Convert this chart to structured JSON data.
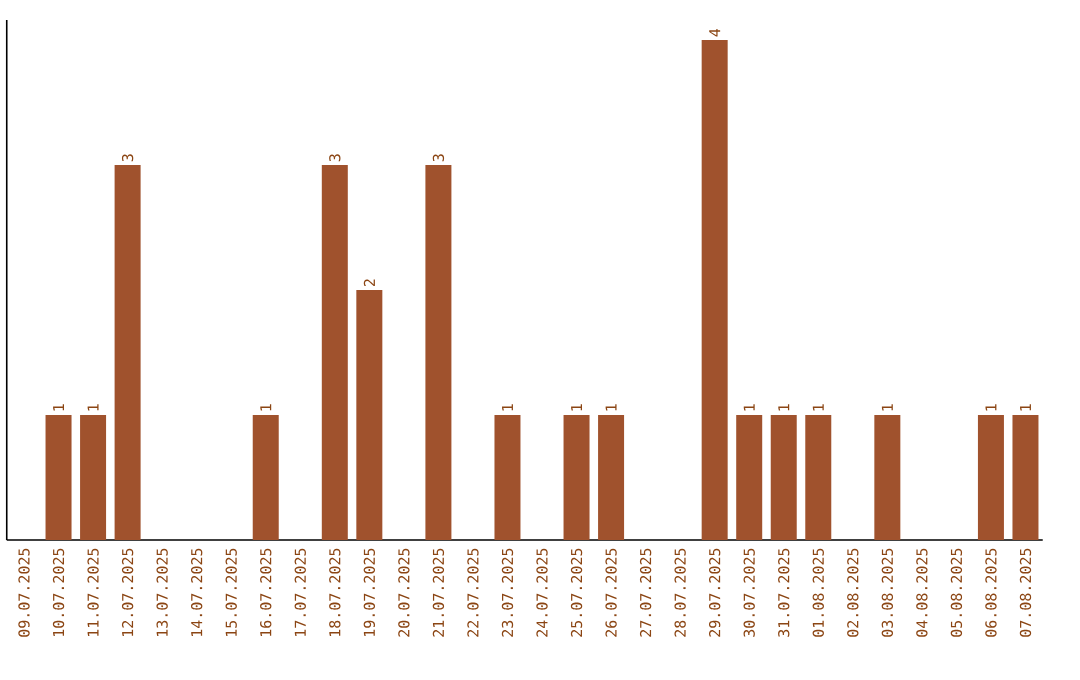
{
  "chart_data": {
    "type": "bar",
    "color": "#a0522d",
    "categories": [
      "09.07.2025",
      "10.07.2025",
      "11.07.2025",
      "12.07.2025",
      "13.07.2025",
      "14.07.2025",
      "15.07.2025",
      "16.07.2025",
      "17.07.2025",
      "18.07.2025",
      "19.07.2025",
      "20.07.2025",
      "21.07.2025",
      "22.07.2025",
      "23.07.2025",
      "24.07.2025",
      "25.07.2025",
      "26.07.2025",
      "27.07.2025",
      "28.07.2025",
      "29.07.2025",
      "30.07.2025",
      "31.07.2025",
      "01.08.2025",
      "02.08.2025",
      "03.08.2025",
      "04.08.2025",
      "05.08.2025",
      "06.08.2025",
      "07.08.2025"
    ],
    "values": [
      0,
      1,
      1,
      3,
      0,
      0,
      0,
      1,
      0,
      3,
      2,
      0,
      3,
      0,
      1,
      0,
      1,
      1,
      0,
      0,
      4,
      1,
      1,
      1,
      0,
      1,
      0,
      0,
      1,
      1
    ],
    "value_labels": [
      null,
      "1",
      "1",
      "3",
      null,
      null,
      null,
      "1",
      null,
      "3",
      "2",
      null,
      "3",
      null,
      "1",
      null,
      "1",
      "1",
      null,
      null,
      "4",
      "1",
      "1",
      "1",
      null,
      "1",
      null,
      null,
      "1",
      "1"
    ],
    "tick_labels": "x"
  }
}
